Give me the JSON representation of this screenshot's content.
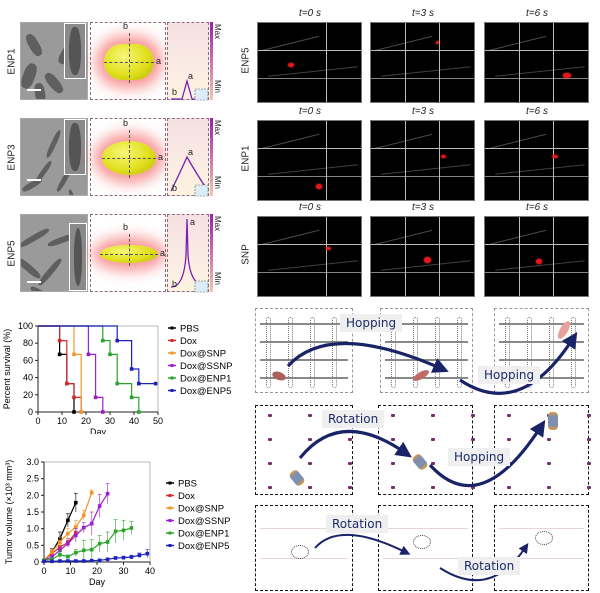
{
  "panel_a": {
    "rows": [
      {
        "label": "ENP1",
        "peak_label": "a",
        "base_label": "b"
      },
      {
        "label": "ENP3",
        "peak_label": "a",
        "base_label": "b"
      },
      {
        "label": "ENP5",
        "peak_label": "a",
        "base_label": "b"
      }
    ],
    "axis_labels": {
      "a": "a",
      "b": "b"
    },
    "colorbar": {
      "max": "Max",
      "min": "Min"
    }
  },
  "panel_b": {
    "rows": [
      {
        "label": "ENP5",
        "times": [
          "t=0 s",
          "t=3 s",
          "t=6 s"
        ]
      },
      {
        "label": "ENP1",
        "times": [
          "t=0 s",
          "t=3 s",
          "t=6 s"
        ]
      },
      {
        "label": "SNP",
        "times": [
          "t=0 s",
          "t=3 s",
          "t=6 s"
        ]
      }
    ]
  },
  "panel_c": {
    "rows": [
      {
        "labels": [
          "Hopping",
          "Hopping"
        ]
      },
      {
        "labels": [
          "Rotation",
          "Hopping"
        ]
      },
      {
        "labels": [
          "Rotation",
          "Rotation"
        ]
      }
    ]
  },
  "chart_data": [
    {
      "type": "line",
      "title": "",
      "xlabel": "Day",
      "ylabel": "Percent survival (%)",
      "xlim": [
        0,
        50
      ],
      "ylim": [
        0,
        100
      ],
      "xticks": [
        0,
        10,
        20,
        30,
        40,
        50
      ],
      "yticks": [
        0,
        20,
        40,
        60,
        80,
        100
      ],
      "step": true,
      "legend_position": "right",
      "series": [
        {
          "name": "PBS",
          "color": "#000000",
          "x": [
            0,
            9,
            12,
            15
          ],
          "y": [
            100,
            67,
            33,
            0
          ]
        },
        {
          "name": "Dox",
          "color": "#d42a2a",
          "x": [
            0,
            9,
            12,
            15,
            18
          ],
          "y": [
            100,
            83,
            33,
            17,
            0
          ]
        },
        {
          "name": "Dox@SNP",
          "color": "#f0962a",
          "x": [
            0,
            15,
            18
          ],
          "y": [
            100,
            67,
            0
          ]
        },
        {
          "name": "Dox@SSNP",
          "color": "#9b1fd0",
          "x": [
            0,
            21,
            24,
            27
          ],
          "y": [
            100,
            67,
            17,
            0
          ]
        },
        {
          "name": "Dox@ENP1",
          "color": "#2aa52a",
          "x": [
            0,
            27,
            30,
            33,
            39,
            42
          ],
          "y": [
            100,
            83,
            67,
            33,
            17,
            0
          ]
        },
        {
          "name": "Dox@ENP5",
          "color": "#1a22b8",
          "x": [
            0,
            33,
            39,
            42,
            49
          ],
          "y": [
            100,
            83,
            50,
            33,
            33
          ]
        }
      ]
    },
    {
      "type": "line",
      "title": "",
      "xlabel": "Day",
      "ylabel": "Tumor volume (×10³ mm³)",
      "xlim": [
        0,
        40
      ],
      "ylim": [
        0,
        3.0
      ],
      "xticks": [
        0,
        10,
        20,
        30,
        40
      ],
      "yticks": [
        0,
        0.5,
        1.0,
        1.5,
        2.0,
        2.5,
        3.0
      ],
      "ytick_labels": [
        "0",
        "0.5",
        "1.0",
        "1.5",
        "2.0",
        "2.5",
        "3.0"
      ],
      "legend_position": "right",
      "series": [
        {
          "name": "PBS",
          "color": "#000000",
          "x": [
            0,
            3,
            6,
            9,
            12
          ],
          "y": [
            0.05,
            0.3,
            0.7,
            1.25,
            1.78
          ],
          "err": [
            0.03,
            0.1,
            0.2,
            0.2,
            0.28
          ]
        },
        {
          "name": "Dox",
          "color": "#d42a2a",
          "x": [
            0,
            3,
            6,
            9,
            12
          ],
          "y": [
            0.05,
            0.25,
            0.45,
            0.58,
            0.88
          ],
          "err": [
            0.03,
            0.08,
            0.1,
            0.12,
            0.2
          ]
        },
        {
          "name": "Dox@SNP",
          "color": "#f0962a",
          "x": [
            0,
            3,
            6,
            9,
            12,
            15,
            18
          ],
          "y": [
            0.05,
            0.3,
            0.6,
            0.85,
            1.05,
            1.4,
            2.08
          ],
          "err": [
            0.03,
            0.08,
            0.15,
            0.15,
            0.2,
            0.15,
            0.08
          ]
        },
        {
          "name": "Dox@SSNP",
          "color": "#9b1fd0",
          "x": [
            0,
            3,
            6,
            9,
            12,
            15,
            18,
            21,
            24
          ],
          "y": [
            0.05,
            0.15,
            0.35,
            0.55,
            0.8,
            1.03,
            1.15,
            1.68,
            2.05
          ],
          "err": [
            0.03,
            0.05,
            0.1,
            0.1,
            0.2,
            0.15,
            0.35,
            0.35,
            0.3
          ]
        },
        {
          "name": "Dox@ENP1",
          "color": "#2aa52a",
          "x": [
            0,
            3,
            6,
            9,
            12,
            15,
            18,
            21,
            24,
            27,
            30,
            33
          ],
          "y": [
            0.05,
            0.08,
            0.22,
            0.16,
            0.28,
            0.35,
            0.37,
            0.55,
            0.6,
            0.92,
            0.95,
            1.02
          ],
          "err": [
            0.03,
            0.03,
            0.1,
            0.05,
            0.1,
            0.3,
            0.3,
            0.25,
            0.3,
            0.35,
            0.3,
            0.2
          ]
        },
        {
          "name": "Dox@ENP5",
          "color": "#1a22b8",
          "x": [
            0,
            3,
            6,
            9,
            12,
            15,
            18,
            21,
            24,
            27,
            30,
            33,
            36,
            39
          ],
          "y": [
            0.02,
            0.02,
            0.03,
            0.03,
            0.03,
            0.03,
            0.04,
            0.05,
            0.08,
            0.12,
            0.13,
            0.15,
            0.2,
            0.25
          ],
          "err": [
            0.01,
            0.01,
            0.01,
            0.01,
            0.01,
            0.01,
            0.02,
            0.02,
            0.03,
            0.03,
            0.04,
            0.05,
            0.07,
            0.12
          ]
        }
      ]
    }
  ]
}
